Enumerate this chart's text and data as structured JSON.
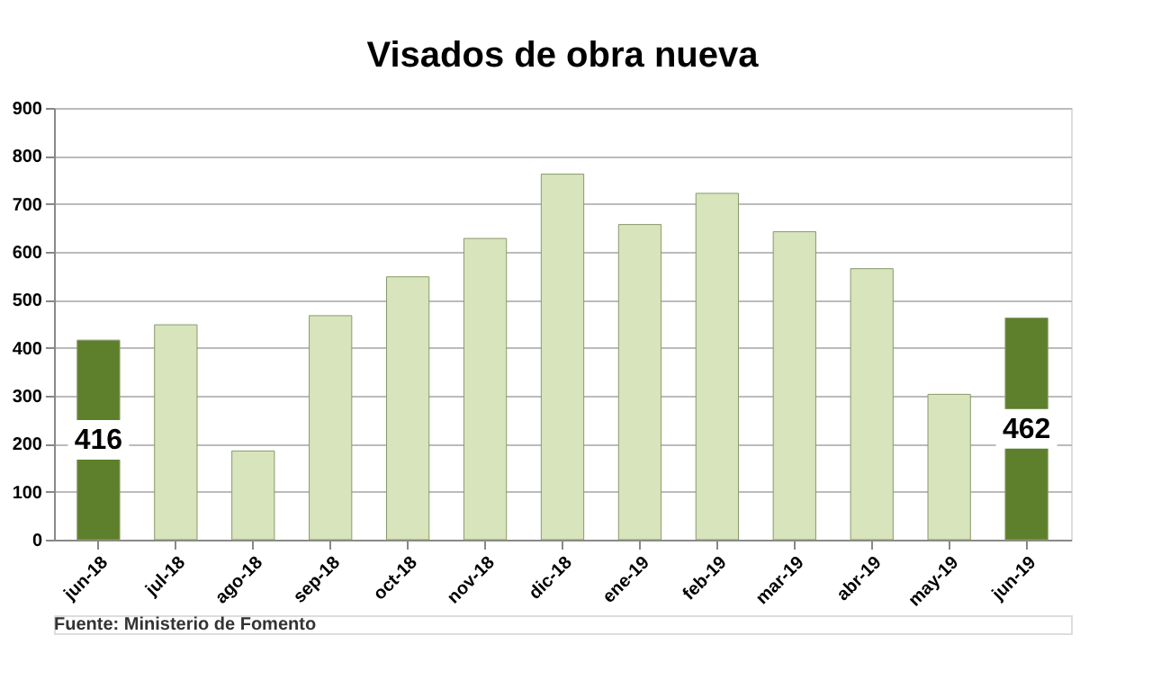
{
  "chart_data": {
    "type": "bar",
    "title": "Visados de obra nueva",
    "categories": [
      "jun-18",
      "jul-18",
      "ago-18",
      "sep-18",
      "oct-18",
      "nov-18",
      "dic-18",
      "ene-19",
      "feb-19",
      "mar-19",
      "abr-19",
      "may-19",
      "jun-19"
    ],
    "values": [
      416,
      448,
      185,
      467,
      548,
      628,
      762,
      657,
      722,
      642,
      565,
      303,
      462
    ],
    "colors": [
      "#5e7f2b",
      "#d7e4bc",
      "#d7e4bc",
      "#d7e4bc",
      "#d7e4bc",
      "#d7e4bc",
      "#d7e4bc",
      "#d7e4bc",
      "#d7e4bc",
      "#d7e4bc",
      "#d7e4bc",
      "#d7e4bc",
      "#5e7f2b"
    ],
    "value_labels": [
      "416",
      null,
      null,
      null,
      null,
      null,
      null,
      null,
      null,
      null,
      null,
      null,
      "462"
    ],
    "ylim": [
      0,
      900
    ],
    "yticks": [
      0,
      100,
      200,
      300,
      400,
      500,
      600,
      700,
      800,
      900
    ],
    "grid": "y",
    "annotations": [
      "Fuente: Ministerio de Fomento"
    ]
  }
}
